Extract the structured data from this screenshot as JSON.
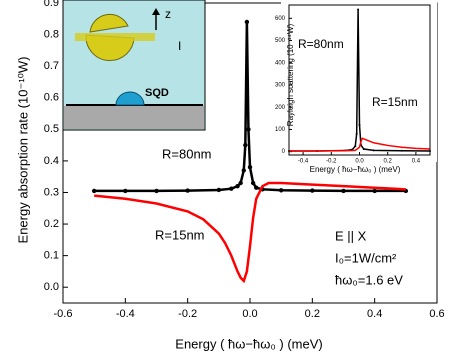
{
  "chart_data": [
    {
      "type": "line",
      "x_label": "Energy ( ħω−ħω₀ ) (meV)",
      "y_label": "Energy absorption rate (10⁻¹⁰W)",
      "xlim": [
        -0.6,
        0.6
      ],
      "ylim": [
        -0.05,
        0.9
      ],
      "xticks": [
        -0.6,
        -0.4,
        -0.2,
        {
          "value": 0,
          "label": "0.0"
        },
        0.2,
        0.4,
        0.6
      ],
      "yticks": [
        {
          "value": 0,
          "label": "0.0"
        },
        0.1,
        0.2,
        0.3,
        0.4,
        0.5,
        0.6,
        0.7,
        0.8,
        0.9
      ],
      "annotations": [
        "R=80nm",
        "R=15nm",
        "E || X",
        "I₀=1W/cm²",
        "ħω₀=1.6 eV"
      ],
      "series": [
        {
          "color": "#000000",
          "marker": "circle",
          "x": [
            -0.5,
            -0.4,
            -0.3,
            -0.2,
            -0.1,
            -0.06,
            -0.04,
            -0.03,
            -0.02,
            -0.015,
            -0.01,
            -0.005,
            0,
            0.01,
            0.02,
            0.04,
            0.1,
            0.2,
            0.3,
            0.4,
            0.5
          ],
          "values": [
            0.305,
            0.305,
            0.305,
            0.306,
            0.308,
            0.312,
            0.32,
            0.33,
            0.37,
            0.45,
            0.84,
            0.5,
            0.38,
            0.33,
            0.315,
            0.31,
            0.307,
            0.306,
            0.305,
            0.305,
            0.305
          ]
        },
        {
          "color": "#ff0000",
          "x": [
            -0.5,
            -0.4,
            -0.3,
            -0.2,
            -0.15,
            -0.1,
            -0.08,
            -0.06,
            -0.04,
            -0.03,
            -0.02,
            -0.01,
            0,
            0.01,
            0.02,
            0.04,
            0.06,
            0.1,
            0.2,
            0.3,
            0.4,
            0.5
          ],
          "values": [
            0.29,
            0.28,
            0.265,
            0.24,
            0.215,
            0.17,
            0.14,
            0.1,
            0.05,
            0.03,
            0.02,
            0.05,
            0.13,
            0.22,
            0.28,
            0.32,
            0.33,
            0.33,
            0.325,
            0.32,
            0.315,
            0.31
          ]
        }
      ]
    },
    {
      "type": "line",
      "x_label": "Energy ( ħω−ħω₀ ) (meV)",
      "y_label": "Rayleigh scattering (10⁻¹⁴W)",
      "xlim": [
        -0.5,
        0.5
      ],
      "ylim": [
        -15,
        660
      ],
      "xticks": [
        -0.4,
        -0.2,
        {
          "value": 0,
          "label": "0.0"
        },
        0.2,
        0.4
      ],
      "yticks": [
        0,
        100,
        200,
        300,
        400,
        500,
        600
      ],
      "annotations": [
        "R=80nm",
        "R=15nm"
      ],
      "series": [
        {
          "color": "#000000",
          "marker": "circle",
          "x": [
            -0.5,
            -0.3,
            -0.1,
            -0.05,
            -0.03,
            -0.02,
            -0.01,
            0,
            0.01,
            0.03,
            0.1,
            0.3,
            0.5
          ],
          "values": [
            3,
            3,
            5,
            10,
            25,
            80,
            640,
            120,
            30,
            12,
            6,
            4,
            3
          ]
        },
        {
          "color": "#ff0000",
          "x": [
            -0.5,
            -0.3,
            -0.1,
            -0.03,
            0,
            0.01,
            0.02,
            0.04,
            0.1,
            0.2,
            0.3,
            0.4,
            0.5
          ],
          "values": [
            3,
            3,
            4,
            6,
            20,
            45,
            60,
            55,
            40,
            28,
            20,
            15,
            12
          ]
        }
      ]
    }
  ],
  "inset_diagram": {
    "z_label": "z",
    "i_label": "I",
    "sqd_label": "SQD"
  }
}
